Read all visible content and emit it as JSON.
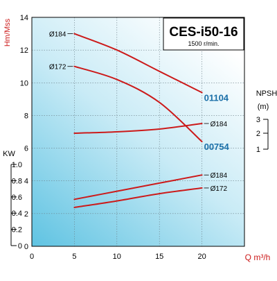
{
  "chart_data": {
    "type": "line",
    "title": "CES-i50-16",
    "subtitle": "1500 r/min.",
    "xlabel": "Q m³/h",
    "xlim": [
      0,
      25
    ],
    "x_ticks": [
      "0",
      "5",
      "10",
      "15",
      "20"
    ],
    "colors": {
      "curve": "#cc1a1a",
      "model": "#1a6fa8",
      "axis": "#000000"
    },
    "head": {
      "ylabel": "Hm/Mss",
      "ylim": [
        0,
        14
      ],
      "y_ticks": [
        "0",
        "2",
        "4",
        "6",
        "8",
        "10",
        "12",
        "14"
      ],
      "series": [
        {
          "name": "Ø184",
          "model": "01104",
          "x": [
            5,
            10,
            15,
            20
          ],
          "y": [
            13.0,
            12.0,
            10.7,
            9.4
          ]
        },
        {
          "name": "Ø172",
          "model": "00754",
          "x": [
            5,
            10,
            15,
            20
          ],
          "y": [
            11.0,
            10.2,
            8.8,
            6.4
          ]
        }
      ]
    },
    "npsh": {
      "ylabel": "NPSH",
      "unit": "(m)",
      "y_ticks": [
        "1",
        "2",
        "3"
      ],
      "series": [
        {
          "name": "Ø184",
          "x": [
            5,
            10,
            15,
            20
          ],
          "y": [
            2.0,
            2.1,
            2.3,
            2.7
          ]
        }
      ]
    },
    "power": {
      "ylabel": "KW",
      "ylim": [
        0,
        1.0
      ],
      "y_ticks": [
        "0",
        "0.2",
        "0.4",
        "0.6",
        "0.8",
        "1.0"
      ],
      "series": [
        {
          "name": "Ø184",
          "x": [
            5,
            10,
            15,
            20
          ],
          "y": [
            0.57,
            0.67,
            0.77,
            0.87
          ]
        },
        {
          "name": "Ø172",
          "x": [
            5,
            10,
            15,
            20
          ],
          "y": [
            0.47,
            0.55,
            0.64,
            0.71
          ]
        }
      ]
    }
  }
}
